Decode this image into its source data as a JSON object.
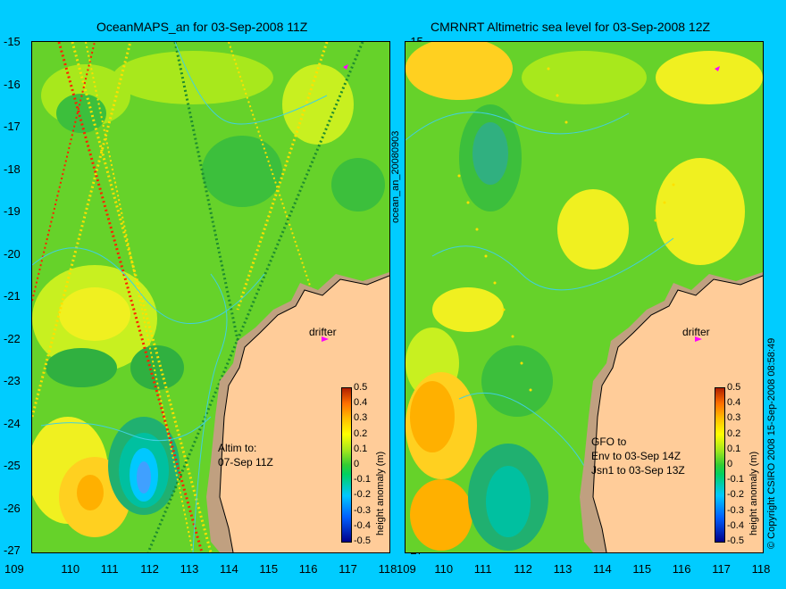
{
  "left_map": {
    "title": "OceanMAPS_an for 03-Sep-2008 11Z",
    "annotation": [
      "Altim to:",
      "07-Sep 11Z"
    ],
    "drifter_label": "drifter"
  },
  "right_map": {
    "title": "CMRNRT Altimetric sea level  for 03-Sep-2008 12Z",
    "annotation": [
      "GFO to",
      "Env to 03-Sep 14Z",
      "Jsn1 to 03-Sep 13Z"
    ],
    "drifter_label": "drifter"
  },
  "side_label": "ocean_an_20080903",
  "copyright": "© Copyright CSIRO 2008   15-Sep-2008 08:58:49",
  "colorbar": {
    "label": "height anomaly (m)",
    "ticks": [
      "0.5",
      "0.4",
      "0.3",
      "0.2",
      "0.1",
      "0",
      "-0.1",
      "-0.2",
      "-0.3",
      "-0.4",
      "-0.5"
    ]
  },
  "axes": {
    "y_ticks": [
      "-15",
      "-16",
      "-17",
      "-18",
      "-19",
      "-20",
      "-21",
      "-22",
      "-23",
      "-24",
      "-25",
      "-26",
      "-27"
    ],
    "x_ticks": [
      "109",
      "110",
      "111",
      "112",
      "113",
      "114",
      "115",
      "116",
      "117",
      "118"
    ]
  },
  "colors": {
    "background": "#00ccff",
    "land": "#ffcc99",
    "coast_shelf": "#c0a080",
    "contour": "#40d0e0",
    "drifter": "#ff00ff"
  }
}
